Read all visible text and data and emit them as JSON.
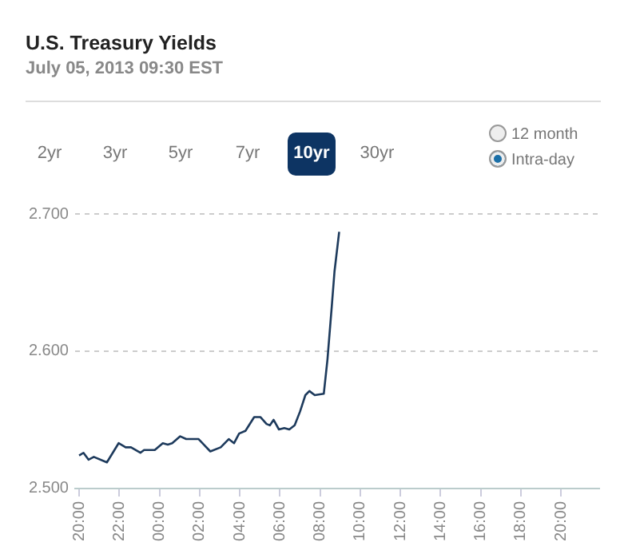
{
  "chart_data": {
    "type": "line",
    "title": "U.S. Treasury Yields",
    "subtitle": "July 05, 2013 09:30 EST",
    "annotations": [
      "2yr",
      "3yr",
      "5yr",
      "7yr",
      "10yr",
      "30yr",
      "12 month",
      "Intra-day"
    ],
    "x": [
      "2013-07-04T20:00",
      "2013-07-04T20:13",
      "2013-07-04T20:28",
      "2013-07-04T20:44",
      "2013-07-04T21:23",
      "2013-07-04T21:58",
      "2013-07-04T22:19",
      "2013-07-04T22:35",
      "2013-07-04T23:03",
      "2013-07-04T23:14",
      "2013-07-04T23:46",
      "2013-07-05T00:10",
      "2013-07-05T00:25",
      "2013-07-05T00:38",
      "2013-07-05T01:02",
      "2013-07-05T01:20",
      "2013-07-05T01:57",
      "2013-07-05T02:32",
      "2013-07-05T03:03",
      "2013-07-05T03:27",
      "2013-07-05T03:43",
      "2013-07-05T03:58",
      "2013-07-05T04:17",
      "2013-07-05T04:43",
      "2013-07-05T05:02",
      "2013-07-05T05:20",
      "2013-07-05T05:30",
      "2013-07-05T05:41",
      "2013-07-05T05:57",
      "2013-07-05T06:13",
      "2013-07-05T06:28",
      "2013-07-05T06:44",
      "2013-07-05T07:00",
      "2013-07-05T07:16",
      "2013-07-05T07:28",
      "2013-07-05T07:44",
      "2013-07-05T08:11",
      "2013-07-05T08:22",
      "2013-07-05T08:35",
      "2013-07-05T08:43",
      "2013-07-05T08:57"
    ],
    "series": [
      {
        "color": "#1d3a5c",
        "values": [
          2.524,
          2.526,
          2.521,
          2.523,
          2.519,
          2.533,
          2.53,
          2.53,
          2.526,
          2.528,
          2.528,
          2.533,
          2.532,
          2.533,
          2.538,
          2.536,
          2.536,
          2.527,
          2.53,
          2.536,
          2.533,
          2.54,
          2.542,
          2.552,
          2.552,
          2.547,
          2.546,
          2.55,
          2.543,
          2.544,
          2.543,
          2.546,
          2.556,
          2.568,
          2.571,
          2.568,
          2.569,
          2.594,
          2.633,
          2.658,
          2.687
        ]
      }
    ],
    "xlim": [
      "2013-07-04T19:48",
      "2013-07-05T21:54"
    ],
    "xticks": [
      {
        "value": "2013-07-04T20:00",
        "label": "20:00"
      },
      {
        "value": "2013-07-04T22:00",
        "label": "22:00"
      },
      {
        "value": "2013-07-05T00:00",
        "label": "00:00"
      },
      {
        "value": "2013-07-05T02:00",
        "label": "02:00"
      },
      {
        "value": "2013-07-05T04:00",
        "label": "04:00"
      },
      {
        "value": "2013-07-05T06:00",
        "label": "06:00"
      },
      {
        "value": "2013-07-05T08:00",
        "label": "08:00"
      },
      {
        "value": "2013-07-05T10:00",
        "label": "10:00"
      },
      {
        "value": "2013-07-05T12:00",
        "label": "12:00"
      },
      {
        "value": "2013-07-05T14:00",
        "label": "14:00"
      },
      {
        "value": "2013-07-05T16:00",
        "label": "16:00"
      },
      {
        "value": "2013-07-05T18:00",
        "label": "18:00"
      },
      {
        "value": "2013-07-05T20:00",
        "label": "20:00"
      }
    ],
    "ylim": [
      2.5,
      2.7
    ],
    "yticks": [
      {
        "value": 2.5,
        "label": "2.500"
      },
      {
        "value": 2.6,
        "label": "2.600"
      },
      {
        "value": 2.7,
        "label": "2.700"
      }
    ],
    "grid": "y",
    "legend": false,
    "marker": "none",
    "line_style": "solid"
  }
}
